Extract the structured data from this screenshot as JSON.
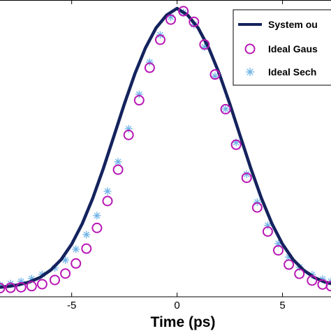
{
  "chart_data": {
    "type": "line",
    "xlabel": "Time (ps)",
    "ylabel": "",
    "xlim": [
      -8.4,
      7.3
    ],
    "ylim": [
      -0.03,
      1.03
    ],
    "x_ticks": [
      -5,
      0,
      5
    ],
    "x_tick_labels": [
      "-5",
      "0",
      "5"
    ],
    "grid": false,
    "legend_position": "top-right",
    "colors": {
      "system_output": "#14235e",
      "ideal_gaussian": "#b817b5",
      "ideal_sech": "#6fb3e6"
    },
    "series": [
      {
        "name": "System ou",
        "marker": "line",
        "x": [
          -8.4,
          -8.0,
          -7.5,
          -7.0,
          -6.5,
          -6.0,
          -5.5,
          -5.0,
          -4.5,
          -4.0,
          -3.5,
          -3.0,
          -2.5,
          -2.0,
          -1.5,
          -1.0,
          -0.5,
          0.0,
          0.5,
          1.0,
          1.5,
          2.0,
          2.5,
          3.0,
          3.5,
          4.0,
          4.5,
          5.0,
          5.5,
          6.0,
          6.5,
          7.0,
          7.3
        ],
        "values": [
          0.004,
          0.007,
          0.013,
          0.023,
          0.039,
          0.065,
          0.103,
          0.158,
          0.231,
          0.322,
          0.428,
          0.543,
          0.659,
          0.767,
          0.859,
          0.93,
          0.976,
          1.0,
          0.976,
          0.93,
          0.859,
          0.767,
          0.659,
          0.543,
          0.428,
          0.322,
          0.231,
          0.158,
          0.103,
          0.065,
          0.039,
          0.023,
          0.017
        ]
      },
      {
        "name": "Ideal Gaus",
        "marker": "circle",
        "x": [
          -8.4,
          -7.9,
          -7.4,
          -6.9,
          -6.4,
          -5.8,
          -5.3,
          -4.8,
          -4.3,
          -3.8,
          -3.3,
          -2.8,
          -2.3,
          -1.8,
          -1.3,
          -0.8,
          -0.3,
          0.3,
          0.8,
          1.3,
          1.8,
          2.3,
          2.8,
          3.3,
          3.8,
          4.3,
          4.8,
          5.3,
          5.8,
          6.4,
          6.9,
          7.3
        ],
        "values": [
          0.001,
          0.002,
          0.004,
          0.008,
          0.015,
          0.03,
          0.053,
          0.089,
          0.142,
          0.216,
          0.312,
          0.424,
          0.548,
          0.672,
          0.788,
          0.888,
          0.96,
          0.99,
          0.952,
          0.871,
          0.764,
          0.64,
          0.513,
          0.395,
          0.289,
          0.203,
          0.136,
          0.085,
          0.052,
          0.028,
          0.014,
          0.008
        ]
      },
      {
        "name": "Ideal Sech",
        "marker": "star",
        "x": [
          -8.4,
          -7.9,
          -7.4,
          -6.9,
          -6.4,
          -5.8,
          -5.3,
          -4.8,
          -4.3,
          -3.8,
          -3.3,
          -2.8,
          -2.3,
          -1.8,
          -1.3,
          -0.8,
          -0.3,
          0.3,
          0.8,
          1.3,
          1.8,
          2.3,
          2.8,
          3.3,
          3.8,
          4.3,
          4.8,
          5.3,
          5.8,
          6.4,
          6.9,
          7.3
        ],
        "values": [
          0.012,
          0.017,
          0.025,
          0.035,
          0.05,
          0.073,
          0.101,
          0.14,
          0.192,
          0.26,
          0.347,
          0.452,
          0.57,
          0.693,
          0.808,
          0.905,
          0.969,
          0.985,
          0.942,
          0.862,
          0.758,
          0.641,
          0.521,
          0.408,
          0.308,
          0.225,
          0.16,
          0.112,
          0.076,
          0.049,
          0.033,
          0.025
        ]
      }
    ]
  }
}
